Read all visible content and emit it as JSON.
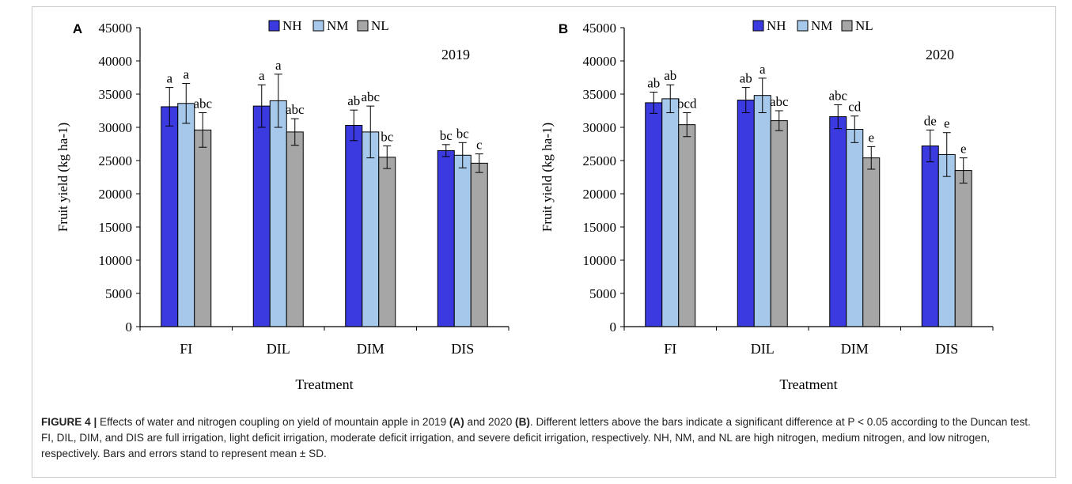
{
  "chart_data": [
    {
      "type": "bar",
      "panel_label": "A",
      "year_label": "2019",
      "ylabel": "Fruit yield (kg ha-1)",
      "xlabel": "Treatment",
      "ylim": [
        0,
        45000
      ],
      "yticks": [
        "0",
        "5000",
        "10000",
        "15000",
        "20000",
        "25000",
        "30000",
        "35000",
        "40000",
        "45000"
      ],
      "categories": [
        "FI",
        "DIL",
        "DIM",
        "DIS"
      ],
      "legend_position": "top-center",
      "grid": false,
      "series": [
        {
          "name": "NH",
          "color": "#3a3ae0",
          "values": [
            33100,
            33200,
            30300,
            26500
          ],
          "errors": [
            2900,
            3200,
            2300,
            900
          ],
          "letters": [
            "a",
            "a",
            "ab",
            "bc"
          ]
        },
        {
          "name": "NM",
          "color": "#a6c8ea",
          "values": [
            33600,
            34000,
            29300,
            25800
          ],
          "errors": [
            3000,
            4000,
            3900,
            1900
          ],
          "letters": [
            "a",
            "a",
            "abc",
            "bc"
          ]
        },
        {
          "name": "NL",
          "color": "#a6a6a6",
          "values": [
            29600,
            29300,
            25500,
            24600
          ],
          "errors": [
            2600,
            2000,
            1700,
            1400
          ],
          "letters": [
            "abc",
            "abc",
            "bc",
            "c"
          ]
        }
      ]
    },
    {
      "type": "bar",
      "panel_label": "B",
      "year_label": "2020",
      "ylabel": "Fruit yield (kg ha-1)",
      "xlabel": "Treatment",
      "ylim": [
        0,
        45000
      ],
      "yticks": [
        "0",
        "5000",
        "10000",
        "15000",
        "20000",
        "25000",
        "30000",
        "35000",
        "40000",
        "45000"
      ],
      "categories": [
        "FI",
        "DIL",
        "DIM",
        "DIS"
      ],
      "legend_position": "top-center",
      "grid": false,
      "series": [
        {
          "name": "NH",
          "color": "#3a3ae0",
          "values": [
            33700,
            34100,
            31600,
            27200
          ],
          "errors": [
            1600,
            1900,
            1800,
            2400
          ],
          "letters": [
            "ab",
            "ab",
            "abc",
            "de"
          ]
        },
        {
          "name": "NM",
          "color": "#a6c8ea",
          "values": [
            34300,
            34800,
            29700,
            25900
          ],
          "errors": [
            2100,
            2600,
            2000,
            3300
          ],
          "letters": [
            "ab",
            "a",
            "cd",
            "e"
          ]
        },
        {
          "name": "NL",
          "color": "#a6a6a6",
          "values": [
            30400,
            31000,
            25400,
            23500
          ],
          "errors": [
            1800,
            1500,
            1700,
            1900
          ],
          "letters": [
            "bcd",
            "abc",
            "e",
            "e"
          ]
        }
      ]
    }
  ],
  "caption": {
    "figure_label": "FIGURE 4 |",
    "text_1": " Effects of water and nitrogen coupling on yield of mountain apple in 2019 ",
    "panel_a": "(A)",
    "text_2": " and 2020 ",
    "panel_b": "(B)",
    "text_3": ". Different letters above the bars indicate a significant difference at P < 0.05 according to the Duncan test. FI, DIL, DIM, and DIS are full irrigation, light deficit irrigation, moderate deficit irrigation, and severe deficit irrigation, respectively. NH, NM, and NL are high nitrogen, medium nitrogen, and low nitrogen, respectively. Bars and errors stand to represent mean ± SD."
  }
}
